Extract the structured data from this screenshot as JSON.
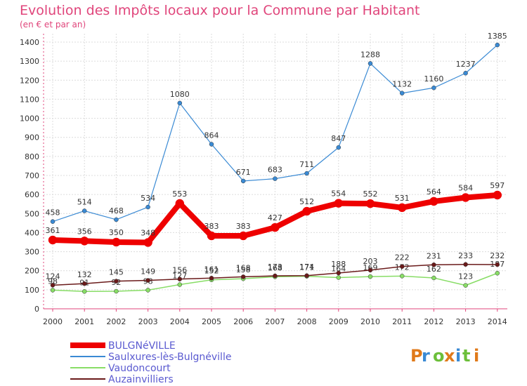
{
  "chart_data": {
    "type": "line",
    "title": "Evolution des Impôts locaux pour la Commune par Habitant",
    "subtitle": "(en € et par an)",
    "x": [
      "2000",
      "2001",
      "2002",
      "2003",
      "2004",
      "2005",
      "2006",
      "2007",
      "2008",
      "2009",
      "2010",
      "2011",
      "2012",
      "2013",
      "2014"
    ],
    "ylim": [
      0,
      1400
    ],
    "yticks": [
      0,
      100,
      200,
      300,
      400,
      500,
      600,
      700,
      800,
      900,
      1000,
      1100,
      1200,
      1300,
      1400
    ],
    "grid": true,
    "legend_position": "bottom-left",
    "series": [
      {
        "name": "BULGNéVILLE",
        "values": [
          361,
          356,
          350,
          348,
          553,
          383,
          383,
          427,
          512,
          554,
          552,
          531,
          564,
          584,
          597
        ],
        "color": "#ee0000"
      },
      {
        "name": "Saulxures-lès-Bulgnéville",
        "values": [
          458,
          514,
          468,
          534,
          1080,
          864,
          671,
          683,
          711,
          847,
          1288,
          1132,
          1160,
          1237,
          1385
        ],
        "color": "#3a8ad4"
      },
      {
        "name": "Vaudoncourt",
        "values": [
          98,
          91,
          92,
          98,
          127,
          152,
          158,
          168,
          171,
          164,
          169,
          172,
          162,
          123,
          187
        ],
        "color": "#88dd66"
      },
      {
        "name": "Auzainvilliers",
        "values": [
          124,
          132,
          145,
          149,
          156,
          161,
          168,
          173,
          174,
          188,
          203,
          222,
          231,
          233,
          232
        ],
        "color": "#6a1a1a"
      }
    ]
  },
  "branding": {
    "logo_text": "Proxiti",
    "logo_colors": [
      "#e07a1a",
      "#3a8ad4",
      "#6cbf3a",
      "#e07a1a",
      "#3a8ad4",
      "#6cbf3a",
      "#e07a1a"
    ]
  }
}
